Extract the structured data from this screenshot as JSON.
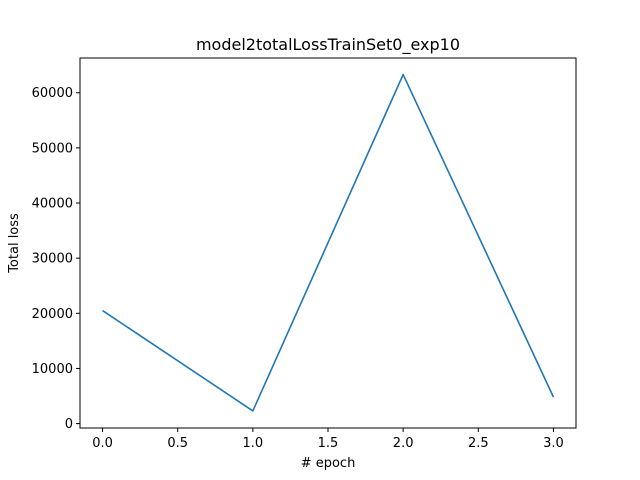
{
  "chart_data": {
    "type": "line",
    "title": "model2totalLossTrainSet0_exp10",
    "xlabel": "# epoch",
    "ylabel": "Total loss",
    "xlim": [
      -0.15,
      3.15
    ],
    "ylim": [
      -800,
      66300
    ],
    "xticks": [
      0.0,
      0.5,
      1.0,
      1.5,
      2.0,
      2.5,
      3.0
    ],
    "xtick_labels": [
      "0.0",
      "0.5",
      "1.0",
      "1.5",
      "2.0",
      "2.5",
      "3.0"
    ],
    "yticks": [
      0,
      10000,
      20000,
      30000,
      40000,
      50000,
      60000
    ],
    "ytick_labels": [
      "0",
      "10000",
      "20000",
      "30000",
      "40000",
      "50000",
      "60000"
    ],
    "grid": false,
    "series": [
      {
        "color": "#1f77b4",
        "x": [
          0,
          1,
          2,
          3
        ],
        "y": [
          20500,
          2300,
          63300,
          4800
        ]
      }
    ]
  }
}
